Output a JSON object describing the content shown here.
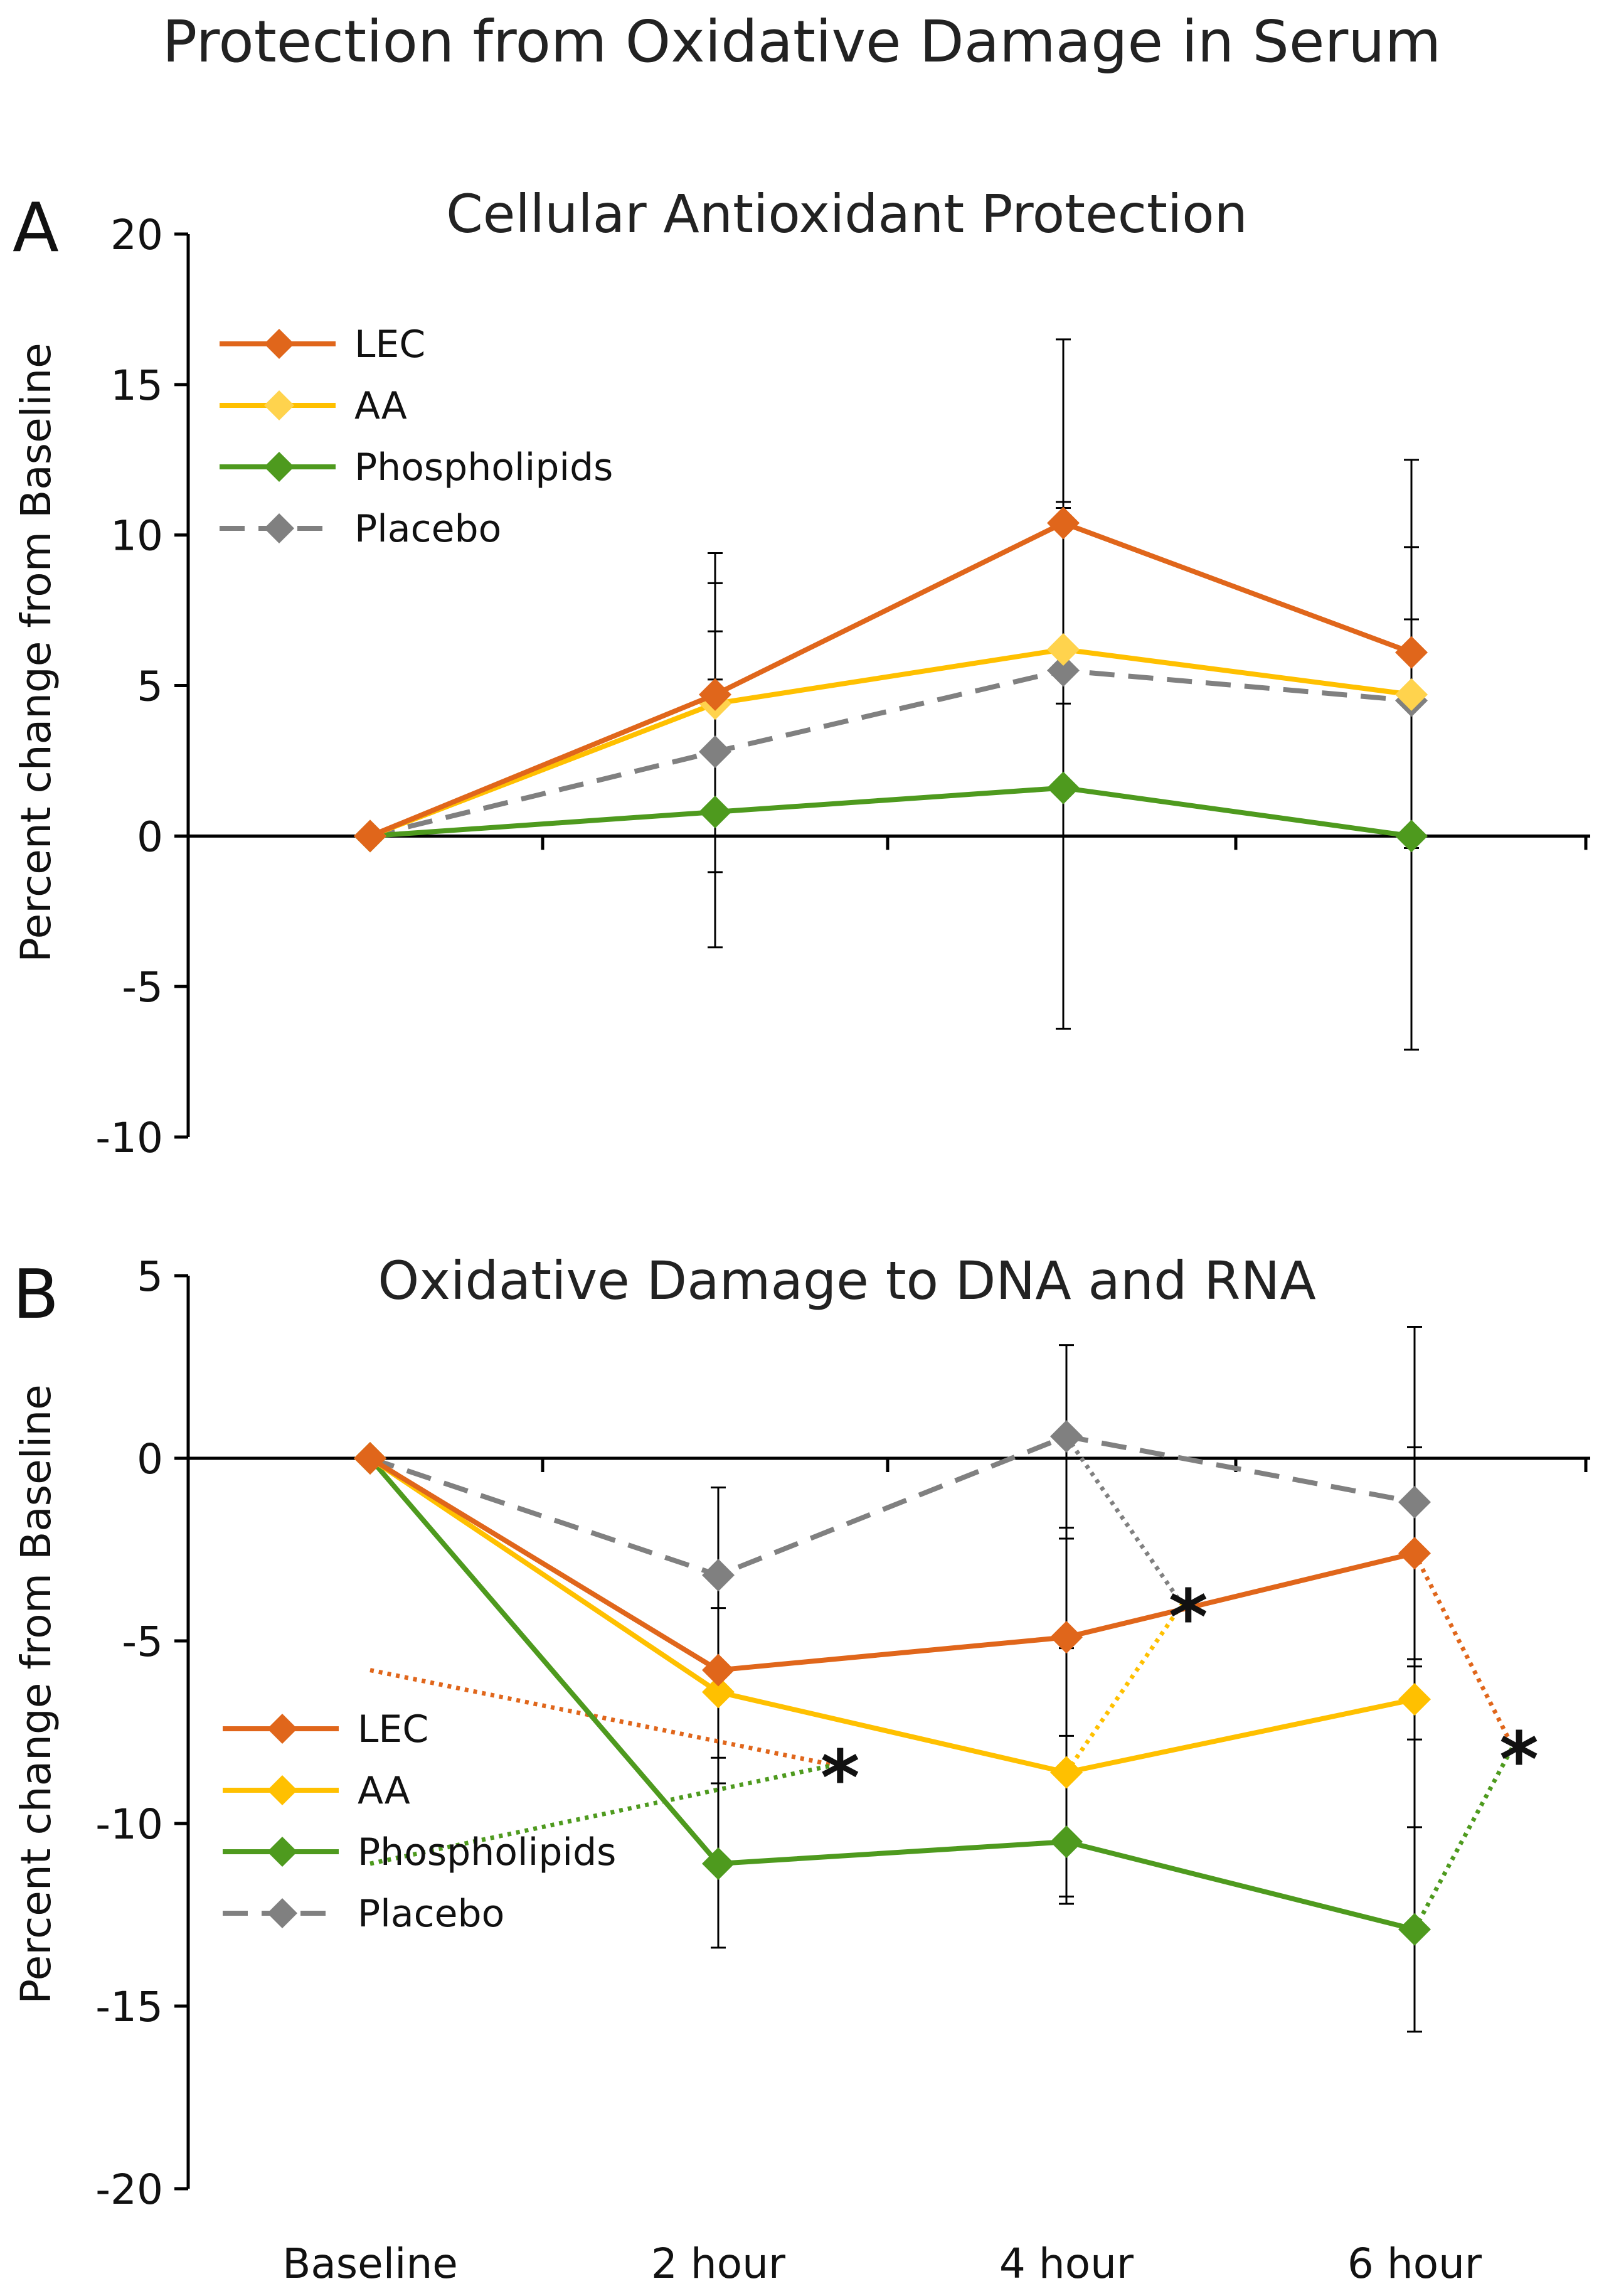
{
  "figure_title": "Protection from Oxidative Damage in Serum",
  "chart_data": [
    {
      "type": "line",
      "panel_letter": "A",
      "title": "Cellular Antioxidant Protection",
      "xlabel": "",
      "ylabel": "Percent change from Baseline",
      "categories": [
        "Baseline",
        "2 hour",
        "4 hour",
        "6 hour"
      ],
      "ylim": [
        -10,
        20
      ],
      "yticks": [
        20,
        15,
        10,
        5,
        0,
        -5,
        -10
      ],
      "legend_position": "top-left",
      "series": [
        {
          "name": "LEC",
          "color": "#e0661b",
          "dash": "solid",
          "values": [
            0,
            4.7,
            10.4,
            6.1
          ]
        },
        {
          "name": "AA",
          "color": "#ffc000",
          "marker_color": "#ffd34d",
          "dash": "solid",
          "values": [
            0,
            4.4,
            6.2,
            4.7
          ]
        },
        {
          "name": "Phospholipids",
          "color": "#4e9a1e",
          "dash": "solid",
          "values": [
            0,
            0.8,
            1.6,
            0.0
          ]
        },
        {
          "name": "Placebo",
          "color": "#808080",
          "dash": "dashed",
          "values": [
            0,
            2.8,
            5.5,
            4.5
          ]
        }
      ],
      "error_bars": [
        {
          "x": "2 hour",
          "low": -3.7,
          "high": 9.4,
          "caps": [
            8.4,
            6.8,
            5.2,
            -1.2
          ]
        },
        {
          "x": "4 hour",
          "low": -6.4,
          "high": 16.5,
          "caps": [
            11.1,
            10.9,
            4.4
          ]
        },
        {
          "x": "6 hour",
          "low": -7.1,
          "high": 12.5,
          "caps": [
            9.6,
            7.2,
            -0.4
          ]
        }
      ],
      "significance_markers": []
    },
    {
      "type": "line",
      "panel_letter": "B",
      "title": "Oxidative Damage to DNA and RNA",
      "xlabel": "",
      "ylabel": "Percent change from Baseline",
      "categories": [
        "Baseline",
        "2 hour",
        "4 hour",
        "6 hour"
      ],
      "ylim": [
        -20,
        5
      ],
      "yticks": [
        5,
        0,
        -5,
        -10,
        -15,
        -20
      ],
      "legend_position": "bottom-left",
      "series": [
        {
          "name": "LEC",
          "color": "#e0661b",
          "dash": "solid",
          "values": [
            0,
            -5.8,
            -4.9,
            -2.6
          ]
        },
        {
          "name": "AA",
          "color": "#ffc000",
          "dash": "solid",
          "values": [
            0,
            -6.4,
            -8.6,
            -6.6
          ]
        },
        {
          "name": "Phospholipids",
          "color": "#4e9a1e",
          "dash": "solid",
          "values": [
            0,
            -11.1,
            -10.5,
            -12.9
          ]
        },
        {
          "name": "Placebo",
          "color": "#808080",
          "dash": "dashed",
          "values": [
            0,
            -3.2,
            0.6,
            -1.2
          ]
        }
      ],
      "error_bars": [
        {
          "x": "2 hour",
          "low": -13.4,
          "high": -0.8,
          "caps": [
            -4.1,
            -8.2,
            -8.9
          ]
        },
        {
          "x": "4 hour",
          "low": -12.2,
          "high": 3.1,
          "caps": [
            -1.9,
            -2.2,
            -5.2,
            -7.6,
            -12.0
          ]
        },
        {
          "x": "6 hour",
          "low": -15.7,
          "high": 3.6,
          "caps": [
            0.3,
            -5.5,
            -5.7,
            -7.7,
            -10.1
          ]
        }
      ],
      "significance_markers": [
        {
          "label": "*",
          "x": 2.35,
          "y": -8.4,
          "from": [
            {
              "x": 1,
              "y": -5.8,
              "color": "#e0661b"
            },
            {
              "x": 1,
              "y": -11.1,
              "color": "#4e9a1e"
            }
          ]
        },
        {
          "label": "*",
          "x": 3.35,
          "y": -4.0,
          "from": [
            {
              "x": 3,
              "y": 0.6,
              "color": "#808080"
            },
            {
              "x": 3,
              "y": -8.6,
              "color": "#ffc000"
            }
          ]
        },
        {
          "label": "*",
          "x": 4.3,
          "y": -7.9,
          "from": [
            {
              "x": 4,
              "y": -2.6,
              "color": "#e0661b"
            },
            {
              "x": 4,
              "y": -12.9,
              "color": "#4e9a1e"
            }
          ]
        }
      ]
    }
  ]
}
